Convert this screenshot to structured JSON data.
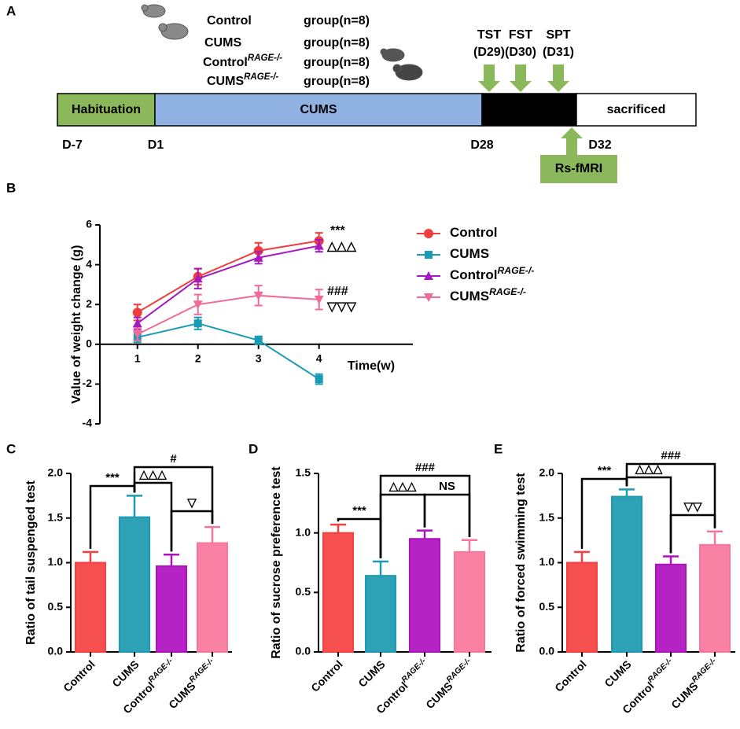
{
  "timeline": {
    "panel": "A",
    "groups": [
      {
        "name": "Control",
        "text": "group(n=8)",
        "color": "#e8262a"
      },
      {
        "name": "CUMS",
        "text": "group(n=8)",
        "color": "#1e88c7"
      },
      {
        "name": "Control",
        "sup": "RAGE-/-",
        "text": "group(n=8)",
        "color": "#c81ee0"
      },
      {
        "name": "CUMS",
        "sup": "RAGE-/-",
        "text": "group(n=8)",
        "color": "#f0609a"
      }
    ],
    "segments": [
      {
        "label": "Habituation",
        "color": "#8bb85a",
        "text_color": "#ffffff"
      },
      {
        "label": "CUMS",
        "color": "#8fb2e3",
        "text_color": "#000000"
      },
      {
        "color": "#000000"
      },
      {
        "label": "sacrificed",
        "color": "#ffffff",
        "text_color": "#000000"
      }
    ],
    "days": [
      "D-7",
      "D1",
      "D28",
      "D32"
    ],
    "tests": [
      {
        "name": "TST",
        "day": "(D29)"
      },
      {
        "name": "FST",
        "day": "(D30)"
      },
      {
        "name": "SPT",
        "day": "(D31)"
      }
    ],
    "scan": "Rs-fMRI",
    "arrow_color": "#8bb85a"
  },
  "chart_data": [
    {
      "type": "line",
      "panel": "B",
      "ylabel": "Value of weight change (g)",
      "xlabel": "Time(w)",
      "x": [
        1,
        2,
        3,
        4
      ],
      "xlim": [
        0.38,
        5.55
      ],
      "xticks": [
        1,
        2,
        3,
        4
      ],
      "ylim": [
        -4,
        6
      ],
      "yticks": [
        -4,
        -2,
        0,
        2,
        4,
        6
      ],
      "series": [
        {
          "name": "Control",
          "color": "#f03c3c",
          "marker": "circle",
          "values": [
            1.6,
            3.4,
            4.7,
            5.2
          ],
          "errors": [
            0.4,
            0.4,
            0.4,
            0.4
          ]
        },
        {
          "name": "CUMS",
          "color": "#1a9bb5",
          "marker": "square",
          "values": [
            0.35,
            1.05,
            0.2,
            -1.75
          ],
          "errors": [
            0.25,
            0.3,
            0.2,
            0.25
          ]
        },
        {
          "name": "Control",
          "sup": "RAGE-/-",
          "color": "#a41bbf",
          "marker": "triangle",
          "values": [
            1.05,
            3.3,
            4.35,
            4.95
          ],
          "errors": [
            0.3,
            0.5,
            0.3,
            0.3
          ]
        },
        {
          "name": "CUMS",
          "sup": "RAGE-/-",
          "color": "#f06a9a",
          "marker": "triangle-down",
          "values": [
            0.5,
            2.0,
            2.45,
            2.25
          ],
          "errors": [
            0.3,
            0.5,
            0.5,
            0.5
          ]
        }
      ],
      "annotations": [
        "***",
        "△△△",
        "###",
        "▽▽▽"
      ]
    },
    {
      "type": "bar",
      "panel": "C",
      "ylabel": "Ratio of tail suspenged test",
      "categories": [
        "Control",
        "CUMS",
        {
          "text": "Control",
          "sup": "RAGE-/-"
        },
        {
          "text": "CUMS",
          "sup": "RAGE-/-"
        }
      ],
      "values": [
        1.0,
        1.51,
        0.96,
        1.22
      ],
      "errors": [
        0.12,
        0.24,
        0.13,
        0.18
      ],
      "colors": [
        "#f44040",
        "#1b9ab0",
        "#b010c0",
        "#f7769c"
      ],
      "ylim": [
        0,
        2.0
      ],
      "yticks": [
        {
          "value": 0,
          "label": "0.0"
        },
        {
          "value": 0.5,
          "label": "0.5"
        },
        {
          "value": 1,
          "label": "1.0"
        },
        {
          "value": 1.5,
          "label": "1.5"
        },
        {
          "value": 2,
          "label": "2.0"
        }
      ],
      "comparisons": [
        {
          "groups": [
            0,
            1
          ],
          "label": "***"
        },
        {
          "groups": [
            1,
            2
          ],
          "label": "△△△"
        },
        {
          "groups": [
            1,
            3
          ],
          "label": "#"
        },
        {
          "groups": [
            2,
            3
          ],
          "label": "▽"
        }
      ]
    },
    {
      "type": "bar",
      "panel": "D",
      "ylabel": "Ratio of sucrose preference test",
      "categories": [
        "Control",
        "CUMS",
        {
          "text": "Control",
          "sup": "RAGE-/-"
        },
        {
          "text": "CUMS",
          "sup": "RAGE-/-"
        }
      ],
      "values": [
        1.0,
        0.64,
        0.95,
        0.84
      ],
      "errors": [
        0.07,
        0.12,
        0.07,
        0.1
      ],
      "colors": [
        "#f44040",
        "#1b9ab0",
        "#b010c0",
        "#f7769c"
      ],
      "ylim": [
        0,
        1.5
      ],
      "yticks": [
        {
          "value": 0,
          "label": "0.0"
        },
        {
          "value": 0.5,
          "label": "0.5"
        },
        {
          "value": 1,
          "label": "1.0"
        },
        {
          "value": 1.5,
          "label": "1.5"
        }
      ],
      "comparisons": [
        {
          "groups": [
            0,
            1
          ],
          "label": "***"
        },
        {
          "groups": [
            1,
            2
          ],
          "label": "△△△"
        },
        {
          "groups": [
            1,
            3
          ],
          "label": "###"
        },
        {
          "groups": [
            2,
            3
          ],
          "label": "NS"
        }
      ]
    },
    {
      "type": "bar",
      "panel": "E",
      "ylabel": "Ratio of forced swimming test",
      "categories": [
        "Control",
        "CUMS",
        {
          "text": "Control",
          "sup": "RAGE-/-"
        },
        {
          "text": "CUMS",
          "sup": "RAGE-/-"
        }
      ],
      "values": [
        1.0,
        1.74,
        0.98,
        1.2
      ],
      "errors": [
        0.12,
        0.08,
        0.09,
        0.15
      ],
      "colors": [
        "#f44040",
        "#1b9ab0",
        "#b010c0",
        "#f7769c"
      ],
      "ylim": [
        0,
        2.0
      ],
      "yticks": [
        {
          "value": 0,
          "label": "0.0"
        },
        {
          "value": 0.5,
          "label": "0.5"
        },
        {
          "value": 1,
          "label": "1.0"
        },
        {
          "value": 1.5,
          "label": "1.5"
        },
        {
          "value": 2,
          "label": "2.0"
        }
      ],
      "comparisons": [
        {
          "groups": [
            0,
            1
          ],
          "label": "***"
        },
        {
          "groups": [
            1,
            2
          ],
          "label": "△△△"
        },
        {
          "groups": [
            1,
            3
          ],
          "label": "###"
        },
        {
          "groups": [
            2,
            3
          ],
          "label": "▽▽"
        }
      ]
    }
  ]
}
